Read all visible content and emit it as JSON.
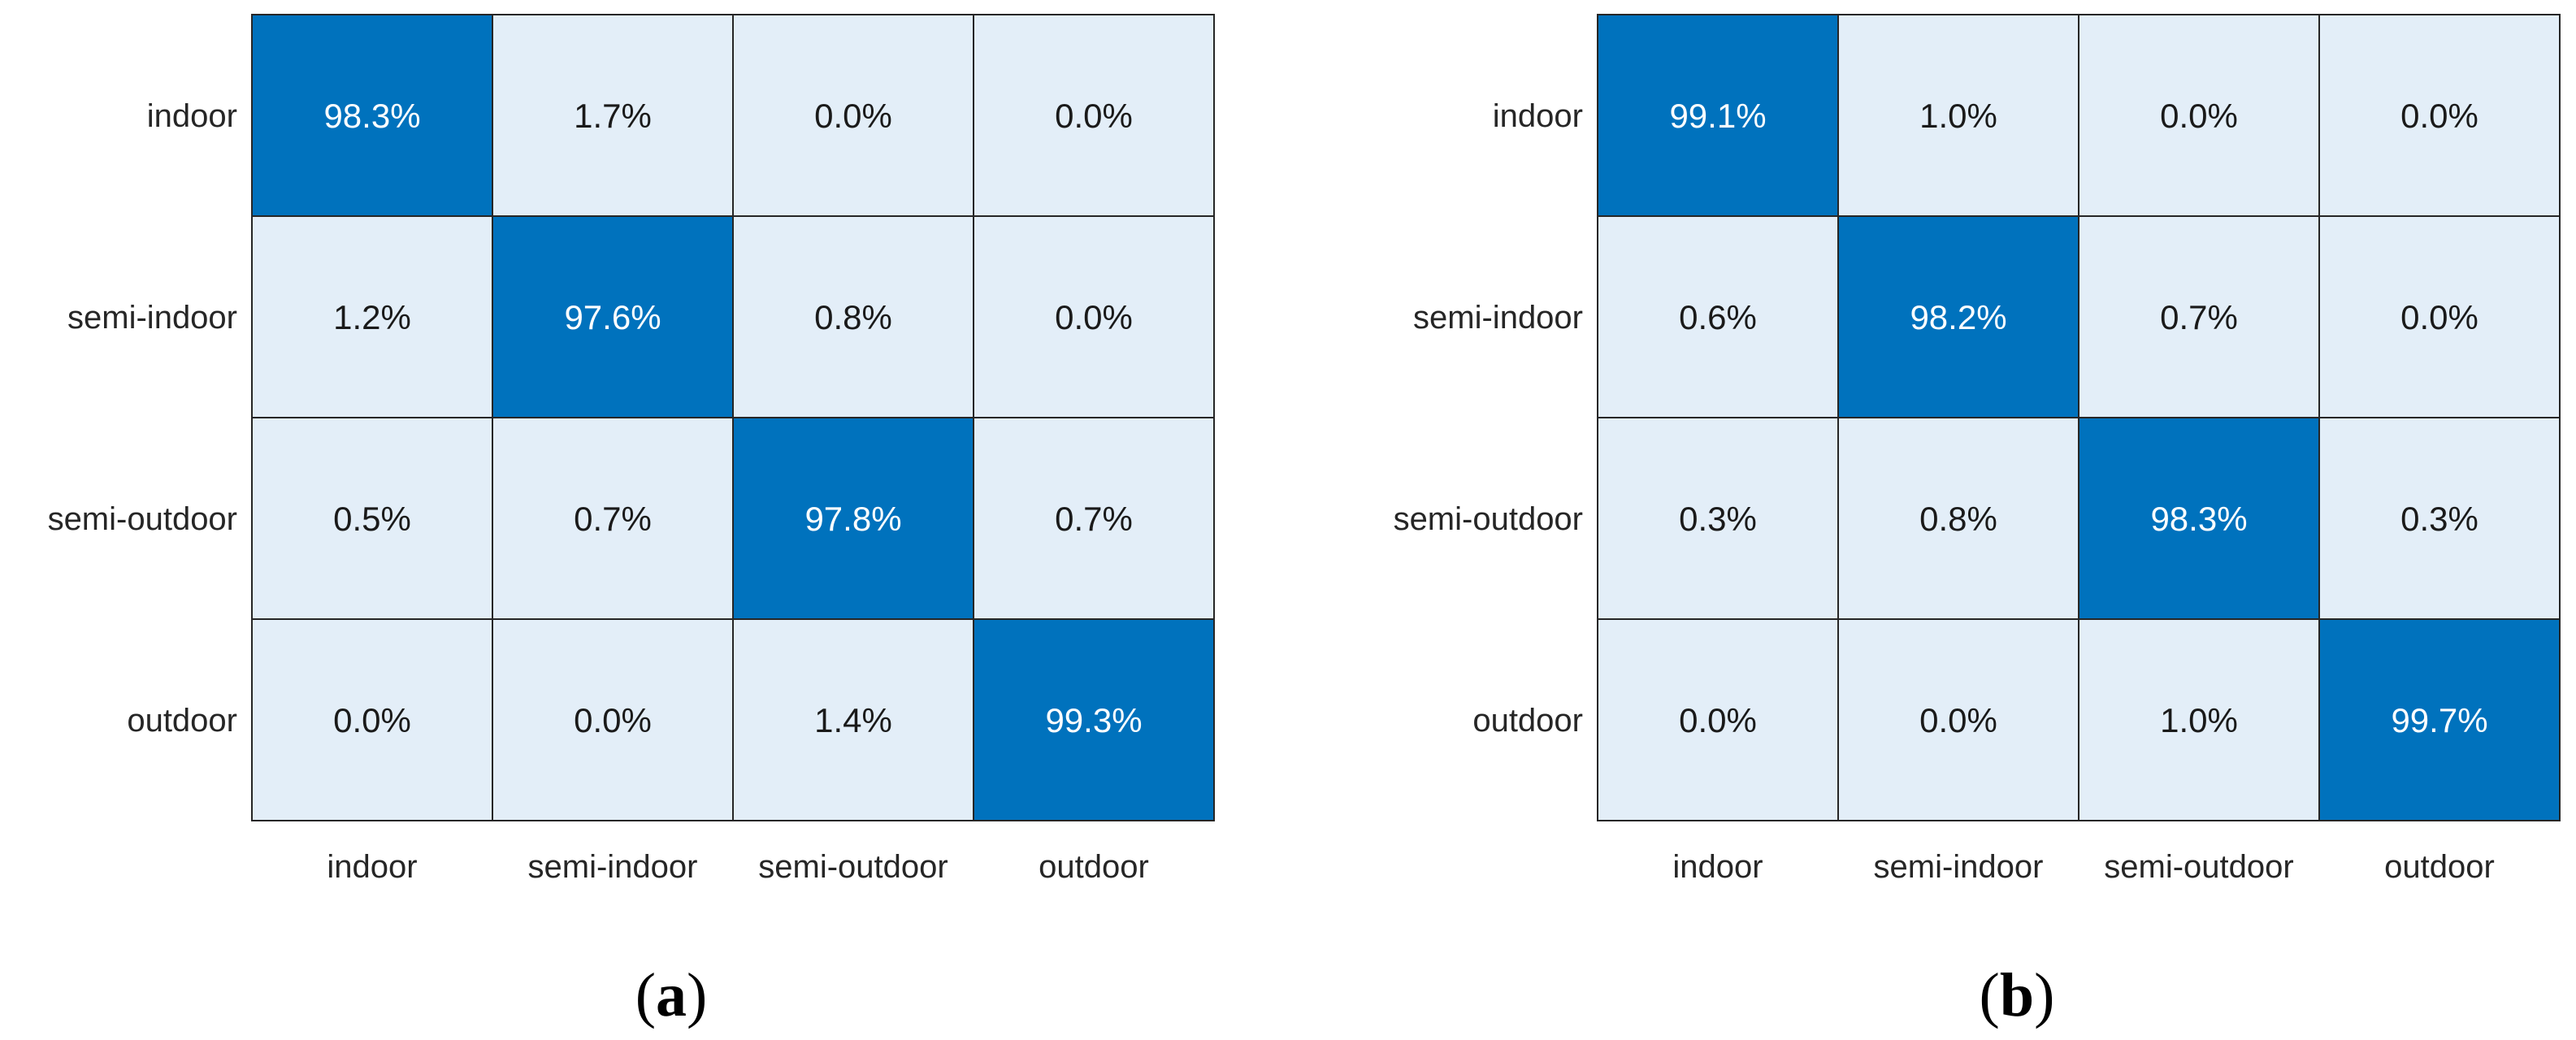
{
  "figure": {
    "panels": [
      {
        "caption_letter": "a"
      },
      {
        "caption_letter": "b"
      }
    ]
  },
  "colors": {
    "high": "#0072bd",
    "low": "#e3eef8",
    "high_text": "#ffffff",
    "low_text": "#1a1a1a",
    "grid_line": "#262626",
    "label_text": "#262626"
  },
  "chart_data": [
    {
      "type": "heatmap",
      "title": "",
      "caption": "(a)",
      "xlabel": "",
      "ylabel": "",
      "row_labels": [
        "indoor",
        "semi-indoor",
        "semi-outdoor",
        "outdoor"
      ],
      "col_labels": [
        "indoor",
        "semi-indoor",
        "semi-outdoor",
        "outdoor"
      ],
      "value_format": "percent_1dp",
      "values": [
        [
          98.3,
          1.7,
          0.0,
          0.0
        ],
        [
          1.2,
          97.6,
          0.8,
          0.0
        ],
        [
          0.5,
          0.7,
          97.8,
          0.7
        ],
        [
          0.0,
          0.0,
          1.4,
          99.3
        ]
      ],
      "color_rule": "diagonal cells dark blue, off-diagonal cells light blue"
    },
    {
      "type": "heatmap",
      "title": "",
      "caption": "(b)",
      "xlabel": "",
      "ylabel": "",
      "row_labels": [
        "indoor",
        "semi-indoor",
        "semi-outdoor",
        "outdoor"
      ],
      "col_labels": [
        "indoor",
        "semi-indoor",
        "semi-outdoor",
        "outdoor"
      ],
      "value_format": "percent_1dp",
      "values": [
        [
          99.1,
          1.0,
          0.0,
          0.0
        ],
        [
          0.6,
          98.2,
          0.7,
          0.0
        ],
        [
          0.3,
          0.8,
          98.3,
          0.3
        ],
        [
          0.0,
          0.0,
          1.0,
          99.7
        ]
      ],
      "color_rule": "diagonal cells dark blue, off-diagonal cells light blue"
    }
  ]
}
